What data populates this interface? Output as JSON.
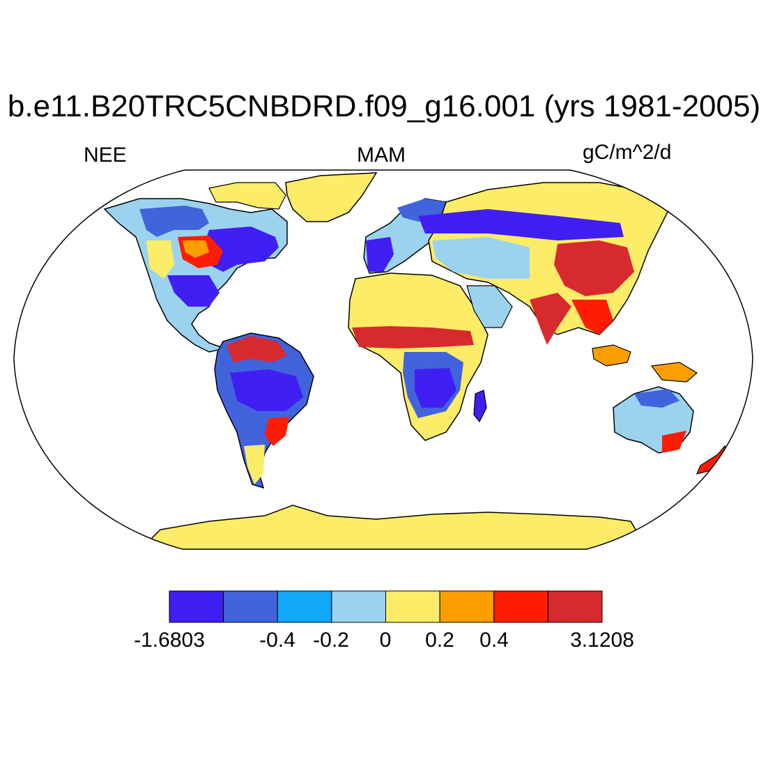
{
  "title": "b.e11.B20TRC5CNBDRD.f09_g16.001 (yrs 1981-2005)",
  "left_label": "NEE",
  "center_label": "MAM",
  "right_label": "gC/m^2/d",
  "colorbar": {
    "colors": [
      "#3f1ff2",
      "#4164dd",
      "#10a8f7",
      "#9bd3ef",
      "#fcec67",
      "#fd9e00",
      "#fe1c05",
      "#d72a2e"
    ],
    "labels": [
      "-1.6803",
      "-0.4",
      "-0.2",
      "0",
      "0.2",
      "0.4",
      "3.1208"
    ]
  },
  "map": {
    "projection": "Robinson",
    "ocean_color": "#ffffff",
    "coastline_color": "#000000"
  }
}
